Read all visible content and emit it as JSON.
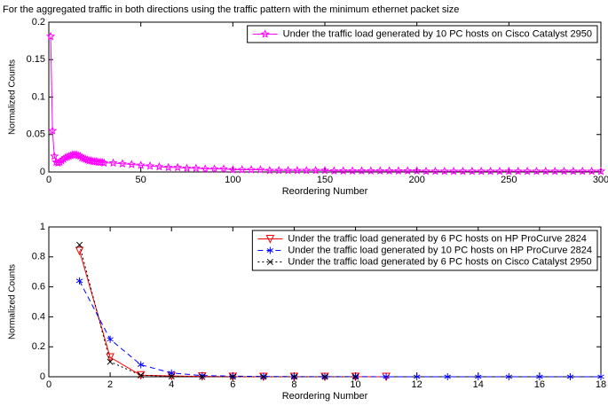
{
  "chart_data": [
    {
      "type": "line",
      "title": "For the aggregated traffic in both directions using the traffic pattern with the minimum ethernet packet size",
      "xlabel": "Reordering Number",
      "ylabel": "Normalized Counts",
      "xlim": [
        0,
        300
      ],
      "xticks": [
        0,
        50,
        100,
        150,
        200,
        250,
        300
      ],
      "ylim": [
        0,
        0.2
      ],
      "yticks": [
        0,
        0.05,
        0.1,
        0.15,
        0.2
      ],
      "legend": "upper right",
      "series": [
        {
          "name": "Under the traffic load generated by 10 PC hosts on Cisco Catalyst 2950",
          "color": "#ff00ff",
          "marker": "star",
          "line_style": "solid",
          "x": [
            1,
            2,
            3,
            4,
            5,
            6,
            7,
            8,
            9,
            10,
            11,
            12,
            13,
            14,
            15,
            16,
            17,
            18,
            19,
            20,
            21,
            22,
            23,
            24,
            25,
            26,
            27,
            28,
            29,
            30,
            35,
            40,
            45,
            50,
            55,
            60,
            65,
            70,
            75,
            80,
            85,
            90,
            95,
            100,
            105,
            110,
            115,
            120,
            125,
            130,
            135,
            140,
            145,
            150,
            155,
            160,
            165,
            170,
            175,
            180,
            185,
            190,
            195,
            200,
            205,
            210,
            215,
            220,
            225,
            230,
            235,
            240,
            245,
            250,
            255,
            260,
            265,
            270,
            275,
            280,
            285,
            290,
            295,
            300
          ],
          "values": [
            0.181,
            0.055,
            0.021,
            0.013,
            0.012,
            0.013,
            0.015,
            0.017,
            0.019,
            0.02,
            0.021,
            0.022,
            0.023,
            0.023,
            0.023,
            0.022,
            0.021,
            0.019,
            0.018,
            0.017,
            0.016,
            0.015,
            0.015,
            0.014,
            0.014,
            0.014,
            0.013,
            0.013,
            0.013,
            0.012,
            0.012,
            0.011,
            0.01,
            0.009,
            0.008,
            0.007,
            0.006,
            0.006,
            0.005,
            0.005,
            0.004,
            0.004,
            0.004,
            0.003,
            0.003,
            0.003,
            0.003,
            0.002,
            0.002,
            0.002,
            0.002,
            0.002,
            0.002,
            0.002,
            0.0015,
            0.0015,
            0.0015,
            0.0015,
            0.0015,
            0.0015,
            0.0015,
            0.0015,
            0.0015,
            0.0015,
            0.001,
            0.001,
            0.001,
            0.001,
            0.001,
            0.001,
            0.001,
            0.001,
            0.001,
            0.001,
            0.001,
            0.001,
            0.001,
            0.001,
            0.001,
            0.001,
            0.001,
            0.001,
            0.001,
            0.001
          ]
        }
      ]
    },
    {
      "type": "line",
      "xlabel": "Reordering Number",
      "ylabel": "Normalized Counts",
      "xlim": [
        0,
        18
      ],
      "xticks": [
        0,
        2,
        4,
        6,
        8,
        10,
        12,
        14,
        16,
        18
      ],
      "ylim": [
        0,
        1
      ],
      "yticks": [
        0,
        0.2,
        0.4,
        0.6,
        0.8,
        1
      ],
      "legend": "upper right",
      "series": [
        {
          "name": "Under the traffic load generated by 6 PC hosts on HP ProCurve 2824",
          "color": "#ff0000",
          "marker": "triangle-down",
          "line_style": "solid",
          "x": [
            1,
            2,
            3,
            4,
            5,
            6,
            7,
            8,
            9,
            10,
            11
          ],
          "values": [
            0.84,
            0.13,
            0.01,
            0.005,
            0.002,
            0,
            0,
            0,
            0,
            0,
            0
          ]
        },
        {
          "name": "Under the traffic load generated by 10 PC hosts on HP ProCurve 2824",
          "color": "#0000ff",
          "marker": "asterisk",
          "line_style": "dashed",
          "x": [
            1,
            2,
            3,
            4,
            5,
            6,
            7,
            8,
            9,
            10,
            11,
            12,
            13,
            14,
            15,
            16,
            17,
            18
          ],
          "values": [
            0.64,
            0.25,
            0.08,
            0.025,
            0.008,
            0.004,
            0.002,
            0.001,
            0.001,
            0.001,
            0,
            0,
            0,
            0,
            0,
            0,
            0,
            0
          ]
        },
        {
          "name": "Under the traffic load generated by 6 PC hosts on Cisco Catalyst 2950",
          "color": "#000000",
          "marker": "x",
          "line_style": "dotted",
          "x": [
            1,
            2,
            3,
            4,
            5,
            6,
            7,
            8,
            9,
            10
          ],
          "values": [
            0.88,
            0.1,
            0.01,
            0.003,
            0,
            0,
            0,
            0,
            0,
            0
          ]
        }
      ]
    }
  ]
}
